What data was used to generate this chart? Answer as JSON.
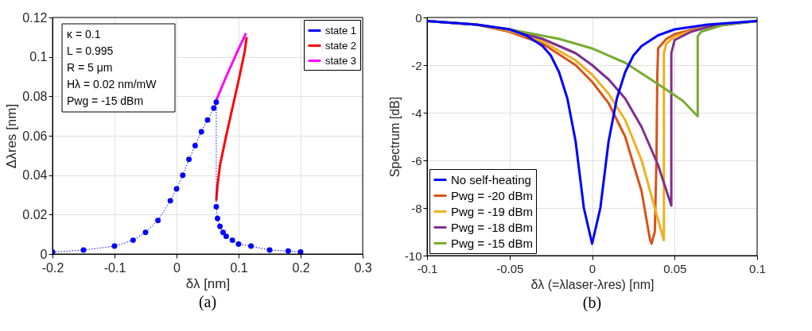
{
  "chart_data": [
    {
      "type": "line",
      "xlabel": "δλ [nm]",
      "ylabel": "Δλres [nm]",
      "xlim": [
        -0.2,
        0.3
      ],
      "ylim": [
        0,
        0.12
      ],
      "xticks": [
        -0.2,
        -0.1,
        0,
        0.1,
        0.2,
        0.3
      ],
      "yticks": [
        0,
        0.02,
        0.04,
        0.06,
        0.08,
        0.1,
        0.12
      ],
      "grid": true,
      "legend": "top right",
      "annotations": [
        "κ = 0.1",
        "L = 0.995",
        "R = 5 μm",
        "Hλ = 0.02 nm/mW",
        "Pwg = -15 dBm",
        "(a)"
      ],
      "series": [
        {
          "name": "state 1",
          "color": "#0000ff",
          "marker": "circle",
          "line_style": "dotted",
          "x": [
            -0.2,
            -0.15,
            -0.1,
            -0.07,
            -0.05,
            -0.03,
            -0.01,
            0,
            0.01,
            0.02,
            0.03,
            0.04,
            0.05,
            0.06,
            0.064,
            0.064,
            0.066,
            0.07,
            0.075,
            0.08,
            0.09,
            0.1,
            0.12,
            0.15,
            0.18,
            0.2
          ],
          "values": [
            0.001,
            0.002,
            0.004,
            0.007,
            0.011,
            0.017,
            0.027,
            0.033,
            0.04,
            0.048,
            0.055,
            0.062,
            0.068,
            0.074,
            0.077,
            0.024,
            0.018,
            0.014,
            0.011,
            0.009,
            0.007,
            0.005,
            0.004,
            0.002,
            0.0015,
            0.001
          ]
        },
        {
          "name": "state 2",
          "color": "#ff0000",
          "marker": "none",
          "line_style": "solid",
          "x": [
            0.064,
            0.066,
            0.07,
            0.08,
            0.09,
            0.1,
            0.11,
            0.113
          ],
          "values": [
            0.027,
            0.035,
            0.045,
            0.06,
            0.074,
            0.088,
            0.103,
            0.11
          ]
        },
        {
          "name": "state 3",
          "color": "#ff00ff",
          "marker": "none",
          "line_style": "solid",
          "x": [
            0.064,
            0.08,
            0.1,
            0.112
          ],
          "values": [
            0.078,
            0.09,
            0.104,
            0.112
          ]
        }
      ]
    },
    {
      "type": "line",
      "xlabel": "δλ (=λlaser-λres) [nm]",
      "ylabel": "Spectrum [dB]",
      "xlim": [
        -0.1,
        0.1
      ],
      "ylim": [
        -10,
        0
      ],
      "xticks": [
        -0.1,
        -0.05,
        0,
        0.05,
        0.1
      ],
      "yticks": [
        -10,
        -8,
        -6,
        -4,
        -2,
        0
      ],
      "grid": true,
      "legend": "bottom left",
      "line_style": "solid",
      "marker": "none",
      "annotations": [
        "(b)"
      ],
      "series": [
        {
          "name": "No self-heating",
          "color": "#0000ff",
          "x": [
            -0.1,
            -0.07,
            -0.05,
            -0.04,
            -0.03,
            -0.025,
            -0.02,
            -0.015,
            -0.01,
            -0.005,
            0,
            0.005,
            0.01,
            0.015,
            0.02,
            0.025,
            0.03,
            0.04,
            0.05,
            0.07,
            0.1
          ],
          "values": [
            -0.15,
            -0.3,
            -0.5,
            -0.75,
            -1.2,
            -1.6,
            -2.3,
            -3.4,
            -5.2,
            -8.0,
            -9.5,
            -8.0,
            -5.2,
            -3.4,
            -2.3,
            -1.6,
            -1.2,
            -0.75,
            -0.5,
            -0.3,
            -0.15
          ]
        },
        {
          "name": "Pwg = -20 dBm",
          "color": "#d95319",
          "x": [
            -0.1,
            -0.07,
            -0.05,
            -0.03,
            -0.01,
            0,
            0.01,
            0.02,
            0.03,
            0.035,
            0.036,
            0.038,
            0.039,
            0.0395,
            0.04,
            0.045,
            0.05,
            0.07,
            0.1
          ],
          "values": [
            -0.15,
            -0.3,
            -0.6,
            -1.1,
            -2.0,
            -2.7,
            -3.6,
            -5.0,
            -7.3,
            -9.3,
            -9.5,
            -9.0,
            -6.0,
            -2.5,
            -1.3,
            -0.9,
            -0.7,
            -0.35,
            -0.15
          ]
        },
        {
          "name": "Pwg = -19 dBm",
          "color": "#edb120",
          "x": [
            -0.1,
            -0.07,
            -0.05,
            -0.03,
            -0.01,
            0,
            0.01,
            0.02,
            0.03,
            0.04,
            0.0435,
            0.0435,
            0.045,
            0.05,
            0.07,
            0.1
          ],
          "values": [
            -0.15,
            -0.3,
            -0.55,
            -1.0,
            -1.8,
            -2.4,
            -3.2,
            -4.3,
            -6.0,
            -8.5,
            -9.35,
            -1.5,
            -1.1,
            -0.8,
            -0.35,
            -0.15
          ]
        },
        {
          "name": "Pwg = -18 dBm",
          "color": "#7e2f8e",
          "x": [
            -0.1,
            -0.07,
            -0.05,
            -0.03,
            -0.01,
            0,
            0.01,
            0.02,
            0.03,
            0.04,
            0.048,
            0.048,
            0.05,
            0.06,
            0.07,
            0.1
          ],
          "values": [
            -0.15,
            -0.3,
            -0.5,
            -0.9,
            -1.5,
            -2.0,
            -2.6,
            -3.4,
            -4.6,
            -6.2,
            -7.9,
            -1.5,
            -0.95,
            -0.6,
            -0.4,
            -0.15
          ]
        },
        {
          "name": "Pwg = -15 dBm",
          "color": "#77ac30",
          "x": [
            -0.1,
            -0.07,
            -0.05,
            -0.02,
            0,
            0.02,
            0.04,
            0.055,
            0.064,
            0.064,
            0.066,
            0.08,
            0.1
          ],
          "values": [
            -0.15,
            -0.3,
            -0.5,
            -0.9,
            -1.3,
            -1.9,
            -2.8,
            -3.5,
            -4.15,
            -0.8,
            -0.6,
            -0.3,
            -0.15
          ]
        }
      ]
    }
  ]
}
